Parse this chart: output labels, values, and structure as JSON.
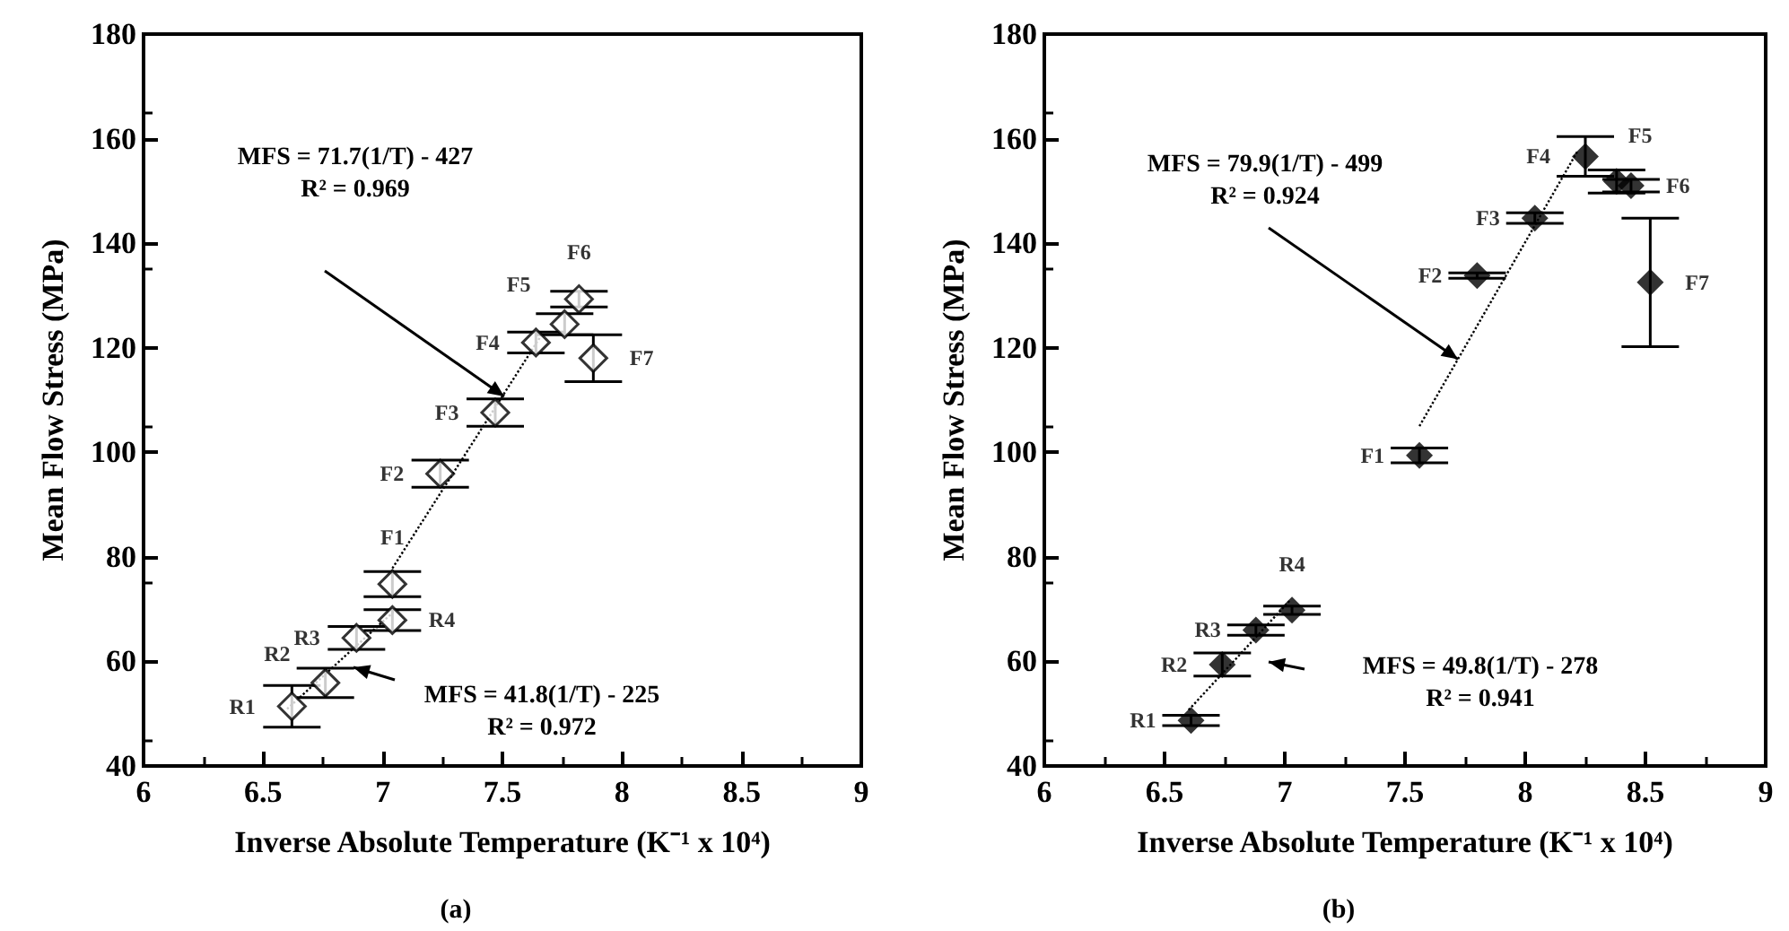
{
  "chart_data": [
    {
      "type": "scatter",
      "title": "(a)",
      "xlabel": "Inverse Absolute Temperature (K⁻¹ x 10⁴)",
      "ylabel": "Mean Flow Stress (MPa)",
      "xlim": [
        6,
        9
      ],
      "xticks": [
        6,
        6.5,
        7,
        7.5,
        8,
        8.5,
        9
      ],
      "ylim": [
        40,
        180
      ],
      "yticks": [
        40,
        60,
        80,
        100,
        120,
        140,
        160,
        180
      ],
      "grid": false,
      "marker": "diamond",
      "series": [
        {
          "color": "#000000",
          "x": [
            6.62,
            6.76,
            6.89,
            7.04,
            7.04,
            7.24,
            7.47,
            7.64,
            7.76,
            7.82,
            7.88
          ],
          "values": [
            51.4,
            55.9,
            64.5,
            67.9,
            74.8,
            95.9,
            107.6,
            121,
            124.5,
            129.3,
            118
          ],
          "errors": [
            4,
            2.8,
            2.2,
            2,
            2.4,
            2.6,
            2.6,
            2,
            2,
            1.5,
            4.5
          ],
          "value_labels": [
            "R1",
            "R2",
            "R3",
            "R4",
            "F1",
            "F2",
            "F3",
            "F4",
            "F5",
            "F6",
            "F7"
          ]
        },
        {
          "type": "line",
          "color": "#000000",
          "line_style": "dotted",
          "marker": "none",
          "x": [
            6.6,
            7.05
          ],
          "values": [
            50.9,
            69.7
          ]
        },
        {
          "type": "line",
          "color": "#000000",
          "line_style": "dotted",
          "marker": "none",
          "x": [
            7.04,
            7.66
          ],
          "values": [
            77.8,
            122.2
          ]
        }
      ],
      "annotations": [
        "MFS = 71.7(1/T) - 427\nR² = 0.969",
        "MFS = 41.8(1/T) - 225\nR² = 0.972"
      ]
    },
    {
      "type": "scatter",
      "title": "(b)",
      "xlabel": "Inverse Absolute Temperature (K⁻¹ x 10⁴)",
      "ylabel": "Mean Flow Stress (MPa)",
      "xlim": [
        6,
        9
      ],
      "xticks": [
        6,
        6.5,
        7,
        7.5,
        8,
        8.5,
        9
      ],
      "ylim": [
        40,
        180
      ],
      "yticks": [
        40,
        60,
        80,
        100,
        120,
        140,
        160,
        180
      ],
      "grid": false,
      "marker": "diamond",
      "series": [
        {
          "color": "#000000",
          "x": [
            6.61,
            6.74,
            6.88,
            7.03,
            7.56,
            7.8,
            8.04,
            8.25,
            8.38,
            8.44,
            8.52
          ],
          "values": [
            48.7,
            59.4,
            66,
            69.8,
            99.4,
            133.8,
            144.8,
            156.6,
            151.8,
            151,
            132.5
          ],
          "errors": [
            1,
            2.2,
            1,
            0.8,
            1.4,
            0.5,
            1,
            3.8,
            2.2,
            1.2,
            12.3
          ],
          "value_labels": [
            "R1",
            "R2",
            "R3",
            "R4",
            "F1",
            "F2",
            "F3",
            "F4",
            "F5",
            "F6",
            "F7"
          ]
        },
        {
          "type": "line",
          "color": "#000000",
          "line_style": "dotted",
          "marker": "none",
          "x": [
            6.6,
            7.02
          ],
          "values": [
            50.7,
            71.6
          ]
        },
        {
          "type": "line",
          "color": "#000000",
          "line_style": "dotted",
          "marker": "none",
          "x": [
            7.56,
            8.22
          ],
          "values": [
            105,
            157.8
          ]
        }
      ],
      "annotations": [
        {
          "text": "MFS = 79.9(1/T) - 499\nR² = 0.924",
          "x": 7.72,
          "y": 117.8
        },
        "MFS = 49.8(1/T) - 278\nR² = 0.941"
      ]
    }
  ]
}
